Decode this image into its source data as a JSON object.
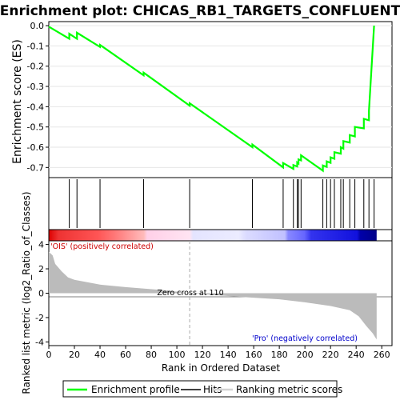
{
  "chart_data": {
    "type": "line",
    "title": "Enrichment plot: CHICAS_RB1_TARGETS_CONFLUENT",
    "es_panel": {
      "ylabel": "Enrichment score (ES)",
      "ylim": [
        -0.75,
        0.02
      ],
      "yticks": [
        0.0,
        -0.1,
        -0.2,
        -0.3,
        -0.4,
        -0.5,
        -0.6,
        -0.7
      ],
      "ytick_labels": [
        "0.0",
        "-0.1",
        "-0.2",
        "-0.3",
        "-0.4",
        "-0.5",
        "-0.6",
        "-0.7"
      ],
      "series": [
        {
          "name": "Enrichment profile",
          "color": "#00ff00",
          "x": [
            0,
            16,
            16,
            22,
            22,
            40,
            40,
            74,
            74,
            110,
            110,
            159,
            159,
            183,
            183,
            191,
            191,
            194,
            194,
            195,
            195,
            197,
            197,
            214,
            214,
            217,
            217,
            220,
            220,
            223,
            223,
            228,
            228,
            230,
            230,
            235,
            235,
            239,
            239,
            246,
            246,
            250,
            250,
            254
          ],
          "y": [
            -0.005,
            -0.065,
            -0.04,
            -0.065,
            -0.035,
            -0.105,
            -0.095,
            -0.245,
            -0.232,
            -0.395,
            -0.383,
            -0.6,
            -0.587,
            -0.7,
            -0.678,
            -0.707,
            -0.688,
            -0.695,
            -0.675,
            -0.68,
            -0.66,
            -0.665,
            -0.64,
            -0.716,
            -0.69,
            -0.697,
            -0.67,
            -0.677,
            -0.65,
            -0.657,
            -0.625,
            -0.632,
            -0.6,
            -0.607,
            -0.57,
            -0.577,
            -0.54,
            -0.547,
            -0.5,
            -0.507,
            -0.46,
            -0.467,
            -0.42,
            0.0
          ]
        }
      ]
    },
    "hits": [
      16,
      22,
      40,
      74,
      110,
      159,
      183,
      191,
      194,
      195,
      197,
      214,
      217,
      220,
      223,
      228,
      230,
      235,
      239,
      246,
      250,
      254
    ],
    "rank_panel": {
      "xlabel": "Rank in Ordered Dataset",
      "ylabel": "Ranked list metric (log2_Ratio_of_Classes)",
      "xlim": [
        0,
        268
      ],
      "xticks": [
        0,
        20,
        40,
        60,
        80,
        100,
        120,
        140,
        160,
        180,
        200,
        220,
        240,
        260
      ],
      "ylim": [
        -4.3,
        4.3
      ],
      "yticks": [
        4,
        2,
        0,
        -2,
        -4
      ],
      "zero_cross": 110,
      "n_genes": 256,
      "metric_profile": [
        [
          0,
          3.4
        ],
        [
          3,
          3.1
        ],
        [
          5,
          2.4
        ],
        [
          10,
          1.8
        ],
        [
          15,
          1.3
        ],
        [
          20,
          1.1
        ],
        [
          40,
          0.7
        ],
        [
          60,
          0.5
        ],
        [
          90,
          0.25
        ],
        [
          110,
          0.0
        ],
        [
          150,
          -0.3
        ],
        [
          180,
          -0.5
        ],
        [
          200,
          -0.75
        ],
        [
          220,
          -1.05
        ],
        [
          235,
          -1.4
        ],
        [
          242,
          -1.9
        ],
        [
          248,
          -2.7
        ],
        [
          253,
          -3.3
        ],
        [
          256,
          -3.8
        ]
      ]
    },
    "annotations": {
      "pos_label": "'OIS' (positively correlated)",
      "neg_label": "'Pro' (negatively correlated)",
      "zero_cross_label": "Zero cross at 110"
    },
    "legend": {
      "items": [
        {
          "label": "Enrichment profile",
          "color": "#00ff00"
        },
        {
          "label": "Hits",
          "color": "#000000"
        },
        {
          "label": "Ranking metric scores",
          "color": "#d3d3d3"
        }
      ]
    },
    "colors": {
      "profile": "#00ff00",
      "positive": "#ff0000",
      "negative": "#0000ff",
      "metric": "#bbbbbb",
      "neg_label": "#0000cc",
      "pos_label": "#cc0000"
    }
  }
}
